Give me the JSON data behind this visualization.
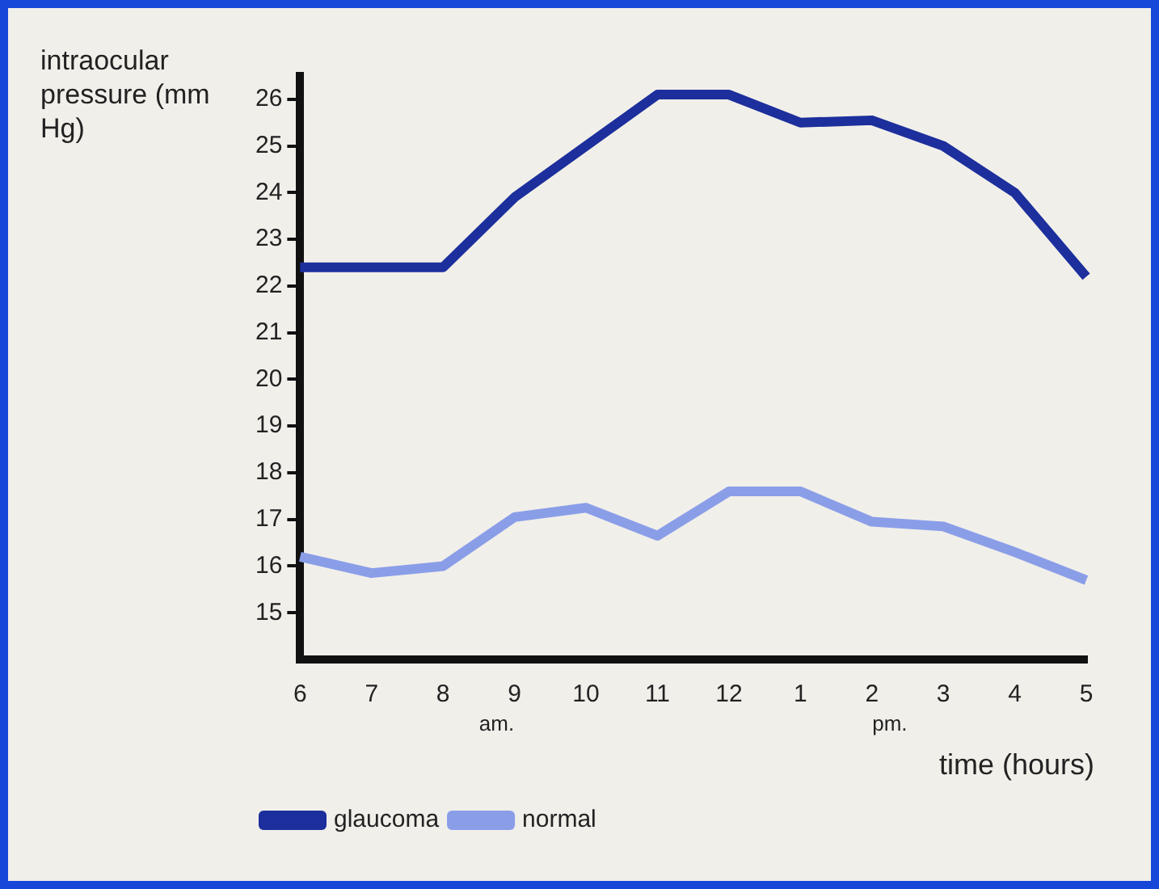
{
  "chart_data": {
    "type": "line",
    "xlabel": "time (hours)",
    "ylabel": "intraocular pressure (mm Hg)",
    "categories": [
      "6",
      "7",
      "8",
      "9",
      "10",
      "11",
      "12",
      "1",
      "2",
      "3",
      "4",
      "5"
    ],
    "series": [
      {
        "name": "glaucoma",
        "color": "#1c2f9c",
        "values": [
          22.4,
          22.4,
          22.4,
          23.9,
          25.0,
          26.1,
          26.1,
          25.5,
          25.55,
          25.0,
          24.0,
          22.2
        ]
      },
      {
        "name": "normal",
        "color": "#8a9ee8",
        "values": [
          16.2,
          15.85,
          16.0,
          17.05,
          17.25,
          16.65,
          17.6,
          17.6,
          16.95,
          16.85,
          16.3,
          15.7
        ]
      }
    ],
    "ylim": [
      14,
      26.5
    ],
    "yticks": [
      15,
      16,
      17,
      18,
      19,
      20,
      21,
      22,
      23,
      24,
      25,
      26
    ],
    "annotations": [
      "am.",
      "pm."
    ],
    "grid": false,
    "legend": "bottom left",
    "marker": "none",
    "line_style": "solid"
  }
}
